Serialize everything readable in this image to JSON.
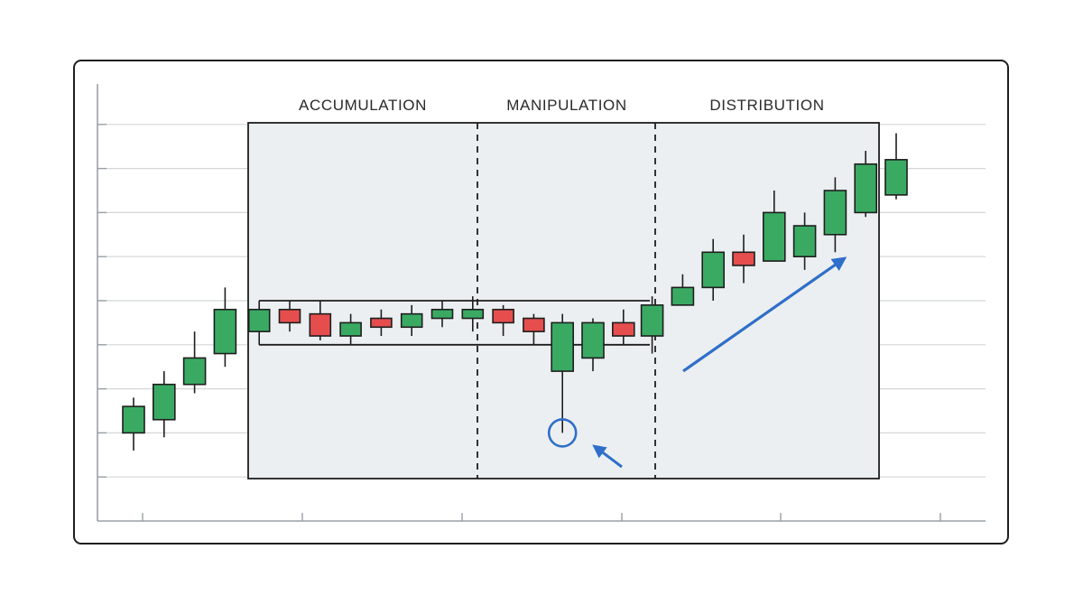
{
  "colors": {
    "bullish": "#3aaa63",
    "bearish": "#e64e4e",
    "candle_border": "#1e1e1e",
    "grid": "#d4d6d8",
    "axis": "#9aa0a6",
    "shaded_zone": "#ebeff1",
    "annotation": "#2f6fc9"
  },
  "chart_data": {
    "type": "candlestick",
    "title": "",
    "xlabel": "",
    "ylabel": "",
    "grid": true,
    "ylim": [
      0,
      10
    ],
    "phases": [
      "ACCUMULATION",
      "MANIPULATION",
      "DISTRIBUTION"
    ],
    "range_levels": {
      "top": 5.0,
      "bottom": 4.0
    },
    "candles": [
      {
        "open": 2.0,
        "close": 2.6,
        "high": 2.8,
        "low": 1.6
      },
      {
        "open": 2.3,
        "close": 3.1,
        "high": 3.4,
        "low": 1.9
      },
      {
        "open": 3.1,
        "close": 3.7,
        "high": 4.3,
        "low": 2.9
      },
      {
        "open": 3.8,
        "close": 4.8,
        "high": 5.3,
        "low": 3.5
      },
      {
        "open": 4.3,
        "close": 4.8,
        "high": 5.0,
        "low": 4.0
      },
      {
        "open": 4.8,
        "close": 4.5,
        "high": 5.0,
        "low": 4.3
      },
      {
        "open": 4.7,
        "close": 4.2,
        "high": 5.0,
        "low": 4.1
      },
      {
        "open": 4.2,
        "close": 4.5,
        "high": 4.7,
        "low": 4.0
      },
      {
        "open": 4.6,
        "close": 4.4,
        "high": 4.8,
        "low": 4.2
      },
      {
        "open": 4.4,
        "close": 4.7,
        "high": 4.9,
        "low": 4.2
      },
      {
        "open": 4.6,
        "close": 4.8,
        "high": 5.0,
        "low": 4.4
      },
      {
        "open": 4.6,
        "close": 4.8,
        "high": 5.1,
        "low": 4.3
      },
      {
        "open": 4.8,
        "close": 4.5,
        "high": 4.9,
        "low": 4.2
      },
      {
        "open": 4.6,
        "close": 4.3,
        "high": 4.7,
        "low": 4.0
      },
      {
        "open": 3.4,
        "close": 4.5,
        "high": 4.7,
        "low": 2.0
      },
      {
        "open": 3.7,
        "close": 4.5,
        "high": 4.6,
        "low": 3.4
      },
      {
        "open": 4.5,
        "close": 4.2,
        "high": 4.8,
        "low": 4.0
      },
      {
        "open": 4.2,
        "close": 4.9,
        "high": 5.1,
        "low": 3.8
      },
      {
        "open": 4.9,
        "close": 5.3,
        "high": 5.6,
        "low": 4.9
      },
      {
        "open": 5.3,
        "close": 6.1,
        "high": 6.4,
        "low": 5.0
      },
      {
        "open": 6.1,
        "close": 5.8,
        "high": 6.5,
        "low": 5.4
      },
      {
        "open": 5.9,
        "close": 7.0,
        "high": 7.5,
        "low": 5.9
      },
      {
        "open": 6.0,
        "close": 6.7,
        "high": 7.0,
        "low": 5.7
      },
      {
        "open": 6.5,
        "close": 7.5,
        "high": 7.8,
        "low": 6.1
      },
      {
        "open": 7.0,
        "close": 8.1,
        "high": 8.4,
        "low": 6.9
      },
      {
        "open": 7.4,
        "close": 8.2,
        "high": 8.8,
        "low": 7.3
      }
    ]
  }
}
